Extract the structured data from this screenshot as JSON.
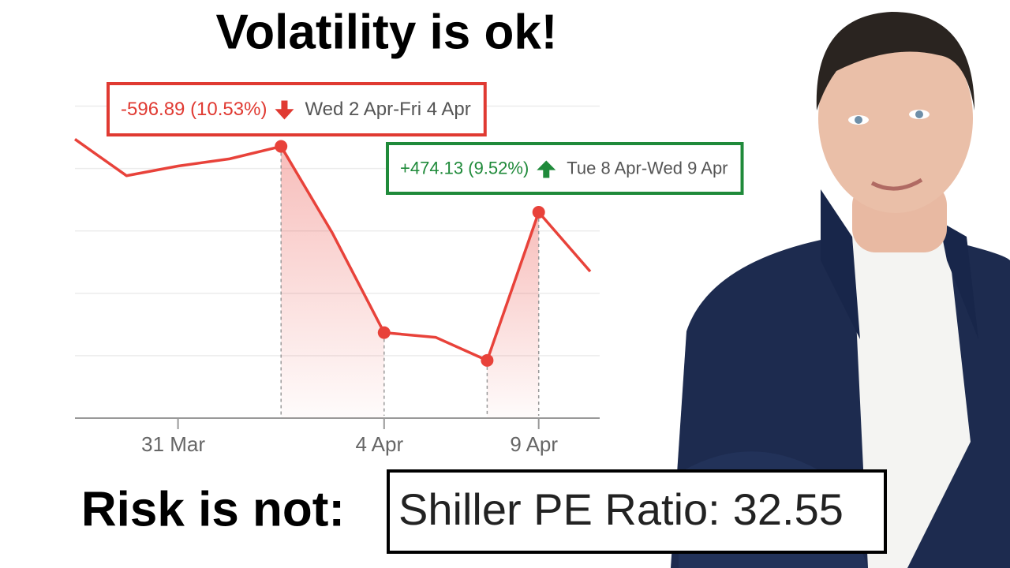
{
  "chart_data": {
    "type": "line",
    "title": "Volatility is ok!",
    "categories": [
      null,
      null,
      "31 Mar",
      null,
      null,
      null,
      "4 Apr",
      null,
      null,
      "9 Apr",
      null
    ],
    "values": [
      5694,
      5577,
      5608,
      5631,
      5671,
      5392,
      5074,
      5059,
      4985,
      5460,
      5270
    ],
    "color": "#e8423a",
    "ylim": [
      4800,
      5900
    ],
    "yticks": [
      5000,
      5200,
      5400,
      5600,
      5800
    ],
    "grid": true,
    "annotations": [
      {
        "change": "-596.89 (10.53%)",
        "dates": "Wed 2 Apr-Fri 4 Apr",
        "color": "#e03a32",
        "direction": "down",
        "from": 4,
        "to": 6
      },
      {
        "change": "+474.13 (9.52%)",
        "dates": "Tue 8 Apr-Wed 9 Apr",
        "color": "#1f8a3a",
        "direction": "up",
        "from": 8,
        "to": 9
      }
    ]
  },
  "footer": {
    "text": "Risk is not:",
    "metric_label": "Shiller PE Ratio:",
    "metric_value": 32.55
  }
}
